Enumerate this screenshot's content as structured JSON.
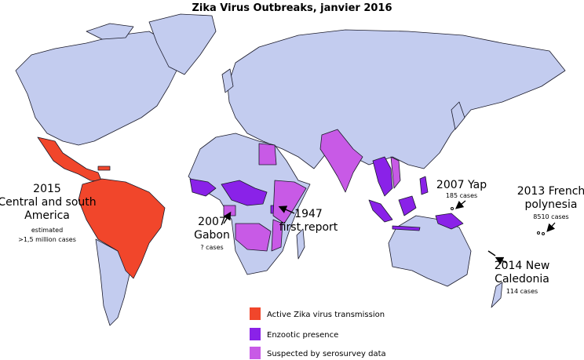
{
  "title": "Zika Virus Outbreaks,  janvier 2016",
  "annotations": [
    {
      "lines": [
        "2015",
        "Central and south",
        "America"
      ],
      "note": [
        "estimated",
        ">1,5 million cases"
      ]
    },
    {
      "lines": [
        "2007",
        "Gabon"
      ],
      "note": [
        "? cases"
      ]
    },
    {
      "lines": [
        "1947",
        "first report"
      ],
      "note": []
    },
    {
      "lines": [
        "2007 Yap"
      ],
      "note": [
        "185 cases"
      ]
    },
    {
      "lines": [
        "2013 French",
        "polynesia"
      ],
      "note": [
        "8510 cases"
      ]
    },
    {
      "lines": [
        "2014 New",
        "Caledonia"
      ],
      "note": [
        "114 cases"
      ]
    }
  ],
  "legend": [
    {
      "label": "Active Zika virus transmission",
      "color": "#f1462b"
    },
    {
      "label": "Enzootic presence",
      "color": "#8a22e8"
    },
    {
      "label": "Suspected by serosurvey data",
      "color": "#c85ae6"
    }
  ]
}
